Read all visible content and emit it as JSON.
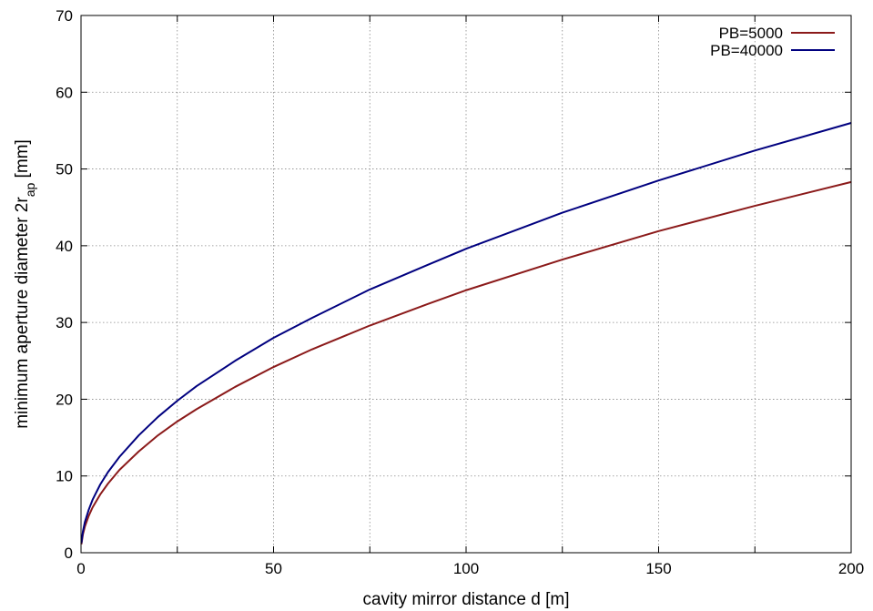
{
  "chart_data": {
    "type": "line",
    "title": "",
    "xlabel": "cavity mirror distance d [m]",
    "ylabel_main": "minimum aperture diameter 2r",
    "ylabel_sub": "ap",
    "ylabel_unit": " [mm]",
    "xlim": [
      0,
      200
    ],
    "ylim": [
      0,
      70
    ],
    "x_ticks": [
      "0",
      "50",
      "100",
      "150",
      "200"
    ],
    "y_ticks": [
      "0",
      "10",
      "20",
      "30",
      "40",
      "50",
      "60",
      "70"
    ],
    "x_grid": [
      0,
      25,
      50,
      75,
      100,
      125,
      150,
      175,
      200
    ],
    "y_grid": [
      0,
      10,
      20,
      30,
      40,
      50,
      60,
      70
    ],
    "grid": true,
    "legend_position": "top-right",
    "series": [
      {
        "name": "PB=5000",
        "color": "#8b1a1a",
        "x": [
          0.1,
          0.5,
          1,
          2,
          3,
          5,
          7,
          10,
          15,
          20,
          25,
          30,
          40,
          50,
          60,
          75,
          90,
          100,
          125,
          150,
          175,
          200
        ],
        "y": [
          1.1,
          2.4,
          3.4,
          4.8,
          5.9,
          7.6,
          9.0,
          10.8,
          13.2,
          15.3,
          17.1,
          18.7,
          21.6,
          24.2,
          26.5,
          29.6,
          32.4,
          34.2,
          38.2,
          41.9,
          45.2,
          48.3
        ]
      },
      {
        "name": "PB=40000",
        "color": "#00007f",
        "x": [
          0.1,
          0.5,
          1,
          2,
          3,
          5,
          7,
          10,
          15,
          20,
          25,
          30,
          40,
          50,
          60,
          75,
          90,
          100,
          125,
          150,
          175,
          200
        ],
        "y": [
          1.25,
          2.8,
          4.0,
          5.6,
          6.9,
          8.9,
          10.5,
          12.5,
          15.3,
          17.7,
          19.8,
          21.7,
          25.0,
          28.0,
          30.6,
          34.3,
          37.5,
          39.6,
          44.3,
          48.5,
          52.4,
          56.0
        ]
      }
    ]
  }
}
